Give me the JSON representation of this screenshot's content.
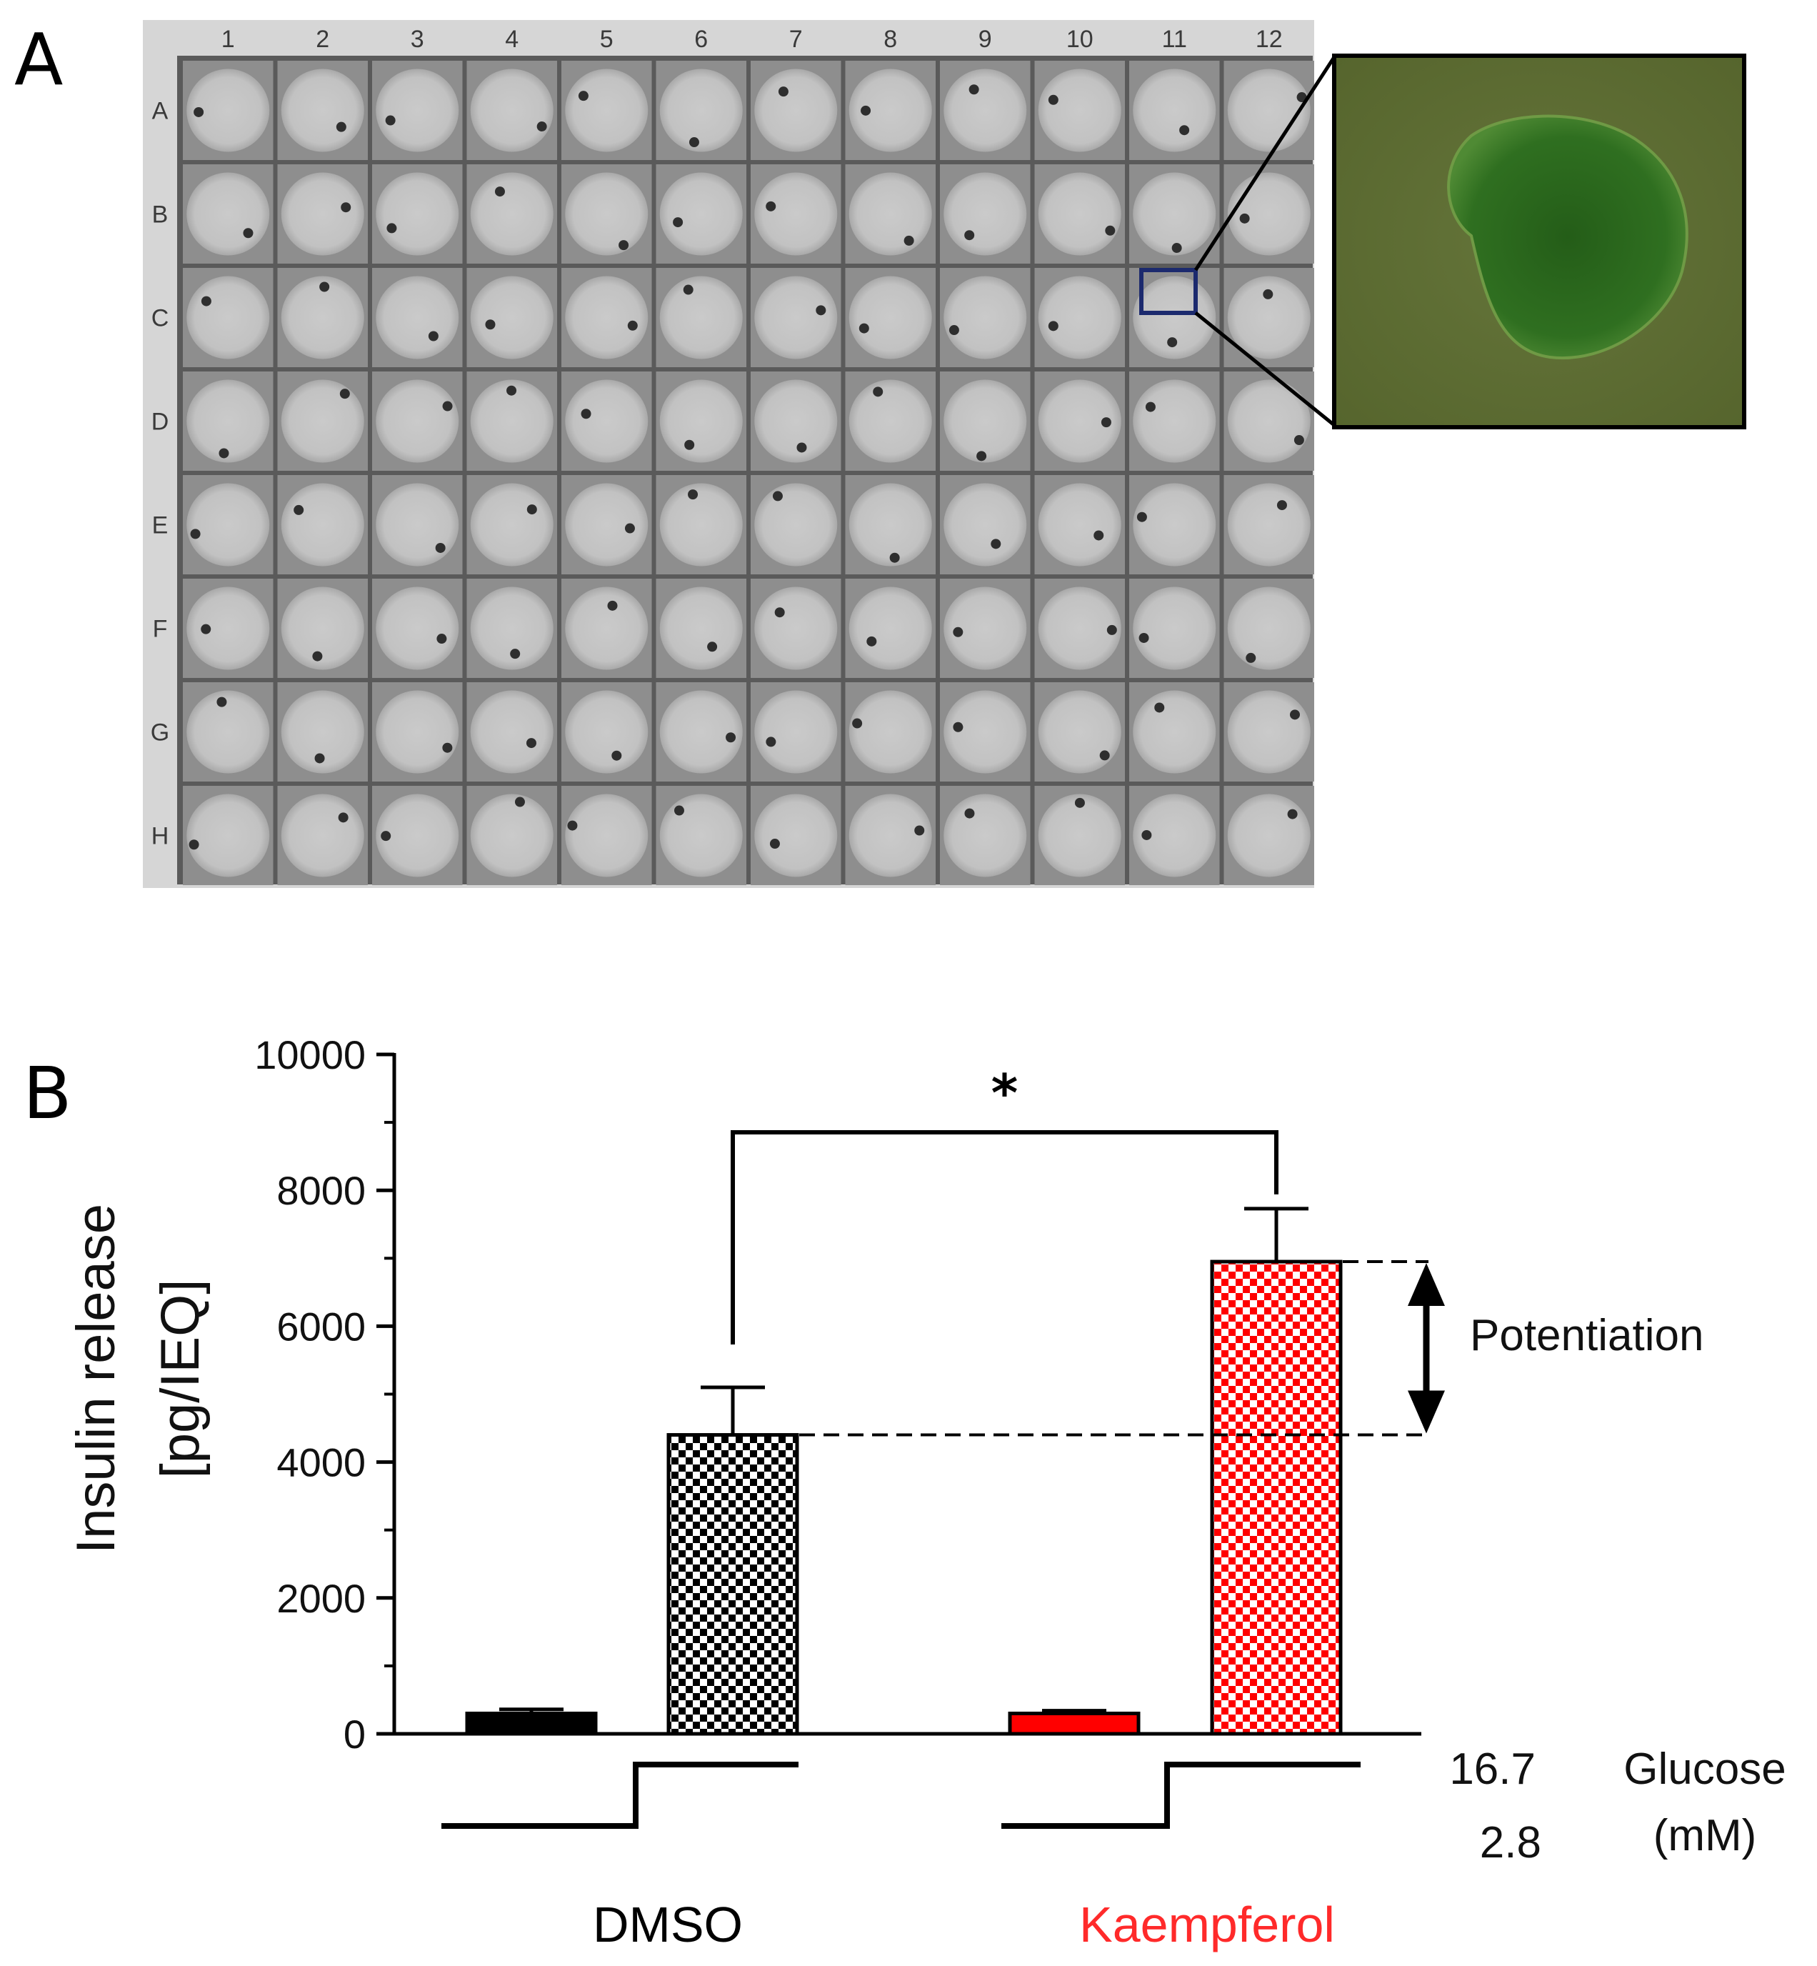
{
  "panels": {
    "a_label": "A",
    "b_label": "B"
  },
  "plate": {
    "column_labels": [
      "1",
      "2",
      "3",
      "4",
      "5",
      "6",
      "7",
      "8",
      "9",
      "10",
      "11",
      "12"
    ],
    "row_labels": [
      "A",
      "B",
      "C",
      "D",
      "E",
      "F",
      "G",
      "H"
    ],
    "highlighted_well": {
      "row": "C",
      "column": "11"
    },
    "colors": {
      "frame": "#cfcfcf",
      "well_bg": "#4a4a4a",
      "well": "#c4c4c4",
      "islet": "#2e2e2e",
      "zoom_bg": "#5e6e33",
      "islet_zoom": "#2c6a1e",
      "highlight_box": "#1c2a6e"
    }
  },
  "chart_data": {
    "type": "bar",
    "ylabel_line1": "Insulin release",
    "ylabel_line2": "[pg/IEQ]",
    "ylim": [
      0,
      10000
    ],
    "yticks": [
      "0",
      "2000",
      "4000",
      "6000",
      "8000",
      "10000"
    ],
    "groups": [
      {
        "label": "DMSO",
        "color": "#000000"
      },
      {
        "label": "Kaempferol",
        "color": "#ff2a2a"
      }
    ],
    "bars": [
      {
        "group": "DMSO",
        "glucose_mM": 2.8,
        "value": 300,
        "error": 60,
        "fill": "solid",
        "color": "#000000"
      },
      {
        "group": "DMSO",
        "glucose_mM": 16.7,
        "value": 4400,
        "error": 700,
        "fill": "checker",
        "color": "#000000"
      },
      {
        "group": "Kaempferol",
        "glucose_mM": 2.8,
        "value": 300,
        "error": 40,
        "fill": "solid",
        "color": "#ff0000"
      },
      {
        "group": "Kaempferol",
        "glucose_mM": 16.7,
        "value": 6950,
        "error": 780,
        "fill": "checker",
        "color": "#ff0000"
      }
    ],
    "significance": "*",
    "annotation": "Potentiation",
    "glucose": {
      "high": "16.7",
      "low": "2.8",
      "label_line1": "Glucose",
      "label_line2": "(mM)"
    }
  }
}
